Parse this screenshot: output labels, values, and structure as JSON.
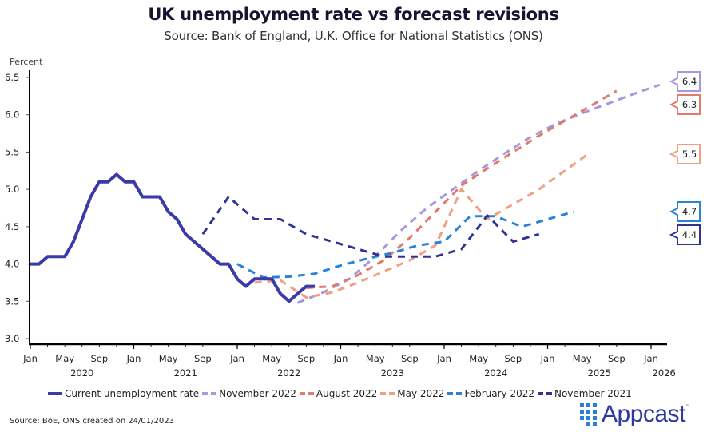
{
  "header": {
    "title": "UK unemployment rate vs forecast revisions",
    "subtitle": "Source: Bank of England, U.K. Office for National Statistics (ONS)"
  },
  "chart_data": {
    "type": "line",
    "title": "UK unemployment rate vs forecast revisions",
    "subtitle": "Source: Bank of England, U.K. Office for National Statistics (ONS)",
    "ylabel": "Percent",
    "xlabel": "",
    "ylim": [
      3.0,
      6.5
    ],
    "xlim": [
      "2020-01",
      "2026-01"
    ],
    "grid": false,
    "yticks": [
      "3.0",
      "3.5",
      "4.0",
      "4.5",
      "5.0",
      "5.5",
      "6.0",
      "6.5"
    ],
    "xticks": [
      {
        "label": "Jan",
        "month": 0
      },
      {
        "label": "May",
        "month": 4
      },
      {
        "label": "Sep",
        "month": 8
      },
      {
        "label": "Jan",
        "month": 12
      },
      {
        "label": "May",
        "month": 16
      },
      {
        "label": "Sep",
        "month": 20
      },
      {
        "label": "Jan",
        "month": 24
      },
      {
        "label": "May",
        "month": 28
      },
      {
        "label": "Sep",
        "month": 32
      },
      {
        "label": "Jan",
        "month": 36
      },
      {
        "label": "May",
        "month": 40
      },
      {
        "label": "Sep",
        "month": 44
      },
      {
        "label": "Jan",
        "month": 48
      },
      {
        "label": "May",
        "month": 52
      },
      {
        "label": "Sep",
        "month": 56
      },
      {
        "label": "Jan",
        "month": 60
      },
      {
        "label": "May",
        "month": 64
      },
      {
        "label": "Sep",
        "month": 68
      },
      {
        "label": "Jan",
        "month": 72
      }
    ],
    "year_labels": [
      {
        "label": "2020",
        "month": 6
      },
      {
        "label": "2021",
        "month": 18
      },
      {
        "label": "2022",
        "month": 30
      },
      {
        "label": "2023",
        "month": 42
      },
      {
        "label": "2024",
        "month": 54
      },
      {
        "label": "2025",
        "month": 66
      },
      {
        "label": "2026",
        "month": 73.5
      }
    ],
    "x_unit": "months since Jan 2020",
    "legend_position": "bottom",
    "series": [
      {
        "name": "Current unemployment rate",
        "color": "#3a3aa8",
        "style": "solid",
        "x": [
          0,
          1,
          2,
          3,
          4,
          5,
          6,
          7,
          8,
          9,
          10,
          11,
          12,
          13,
          14,
          15,
          16,
          17,
          18,
          19,
          20,
          21,
          22,
          23,
          24,
          25,
          26,
          27,
          28,
          29,
          30,
          31,
          32,
          33
        ],
        "values": [
          4.0,
          4.0,
          4.1,
          4.1,
          4.1,
          4.3,
          4.6,
          4.9,
          5.1,
          5.1,
          5.2,
          5.1,
          5.1,
          4.9,
          4.9,
          4.9,
          4.7,
          4.6,
          4.4,
          4.3,
          4.2,
          4.1,
          4.0,
          4.0,
          3.8,
          3.7,
          3.8,
          3.8,
          3.8,
          3.6,
          3.5,
          3.6,
          3.7,
          3.7
        ]
      },
      {
        "name": "November 2022",
        "color": "#a797e3",
        "style": "dashed",
        "x": [
          31,
          34,
          37,
          40,
          43,
          46,
          49,
          52,
          55,
          58,
          61,
          64,
          67,
          70,
          73
        ],
        "values": [
          3.48,
          3.62,
          3.8,
          4.1,
          4.45,
          4.75,
          5.0,
          5.25,
          5.48,
          5.7,
          5.88,
          6.02,
          6.15,
          6.28,
          6.4
        ]
      },
      {
        "name": "August 2022",
        "color": "#e37a6e",
        "style": "dashed",
        "x": [
          32,
          35,
          38,
          41,
          44,
          47,
          50,
          53,
          56,
          59,
          62,
          65,
          68
        ],
        "values": [
          3.68,
          3.7,
          3.85,
          4.05,
          4.35,
          4.7,
          5.05,
          5.28,
          5.5,
          5.72,
          5.92,
          6.12,
          6.32
        ]
      },
      {
        "name": "May 2022",
        "color": "#f0a07e",
        "style": "dashed",
        "x": [
          26,
          29,
          32,
          35,
          38,
          41,
          44,
          47,
          50,
          53,
          56,
          59,
          62,
          65
        ],
        "values": [
          3.75,
          3.78,
          3.55,
          3.62,
          3.75,
          3.9,
          4.05,
          4.25,
          5.0,
          4.6,
          4.8,
          5.0,
          5.25,
          5.5
        ]
      },
      {
        "name": "February 2022",
        "color": "#2b82d6",
        "style": "dashed",
        "x": [
          24,
          27,
          30,
          33,
          36,
          39,
          42,
          45,
          48,
          51,
          54,
          57,
          60,
          63
        ],
        "values": [
          4.0,
          3.82,
          3.83,
          3.87,
          3.98,
          4.07,
          4.15,
          4.25,
          4.3,
          4.64,
          4.64,
          4.5,
          4.6,
          4.7
        ]
      },
      {
        "name": "November 2021",
        "color": "#2f3494",
        "style": "dashed",
        "x": [
          20,
          23,
          26,
          29,
          32,
          35,
          38,
          41,
          44,
          47,
          50,
          53,
          56,
          59
        ],
        "values": [
          4.4,
          4.9,
          4.6,
          4.6,
          4.4,
          4.3,
          4.2,
          4.1,
          4.1,
          4.1,
          4.2,
          4.65,
          4.3,
          4.4
        ]
      }
    ],
    "end_labels": [
      {
        "series": "November 2022",
        "text": "6.4",
        "value": 6.4,
        "color": "#a797e3"
      },
      {
        "series": "August 2022",
        "text": "6.3",
        "value": 6.3,
        "color": "#e37a6e"
      },
      {
        "series": "May 2022",
        "text": "5.5",
        "value": 5.5,
        "color": "#f0a07e"
      },
      {
        "series": "February 2022",
        "text": "4.7",
        "value": 4.7,
        "color": "#2b82d6"
      },
      {
        "series": "November 2021",
        "text": "4.4",
        "value": 4.4,
        "color": "#2f3494"
      }
    ]
  },
  "legend": [
    {
      "label": "Current unemployment rate",
      "color": "#3a3aa8",
      "style": "solid"
    },
    {
      "label": "November 2022",
      "color": "#a797e3",
      "style": "dashed"
    },
    {
      "label": "August 2022",
      "color": "#e37a6e",
      "style": "dashed"
    },
    {
      "label": "May 2022",
      "color": "#f0a07e",
      "style": "dashed"
    },
    {
      "label": "February 2022",
      "color": "#2b82d6",
      "style": "dashed"
    },
    {
      "label": "November 2021",
      "color": "#2f3494",
      "style": "dashed"
    }
  ],
  "footer": {
    "source_note": "Source: BoE, ONS created on 24/01/2023",
    "brand": "Appcast",
    "brand_tm": "™"
  }
}
